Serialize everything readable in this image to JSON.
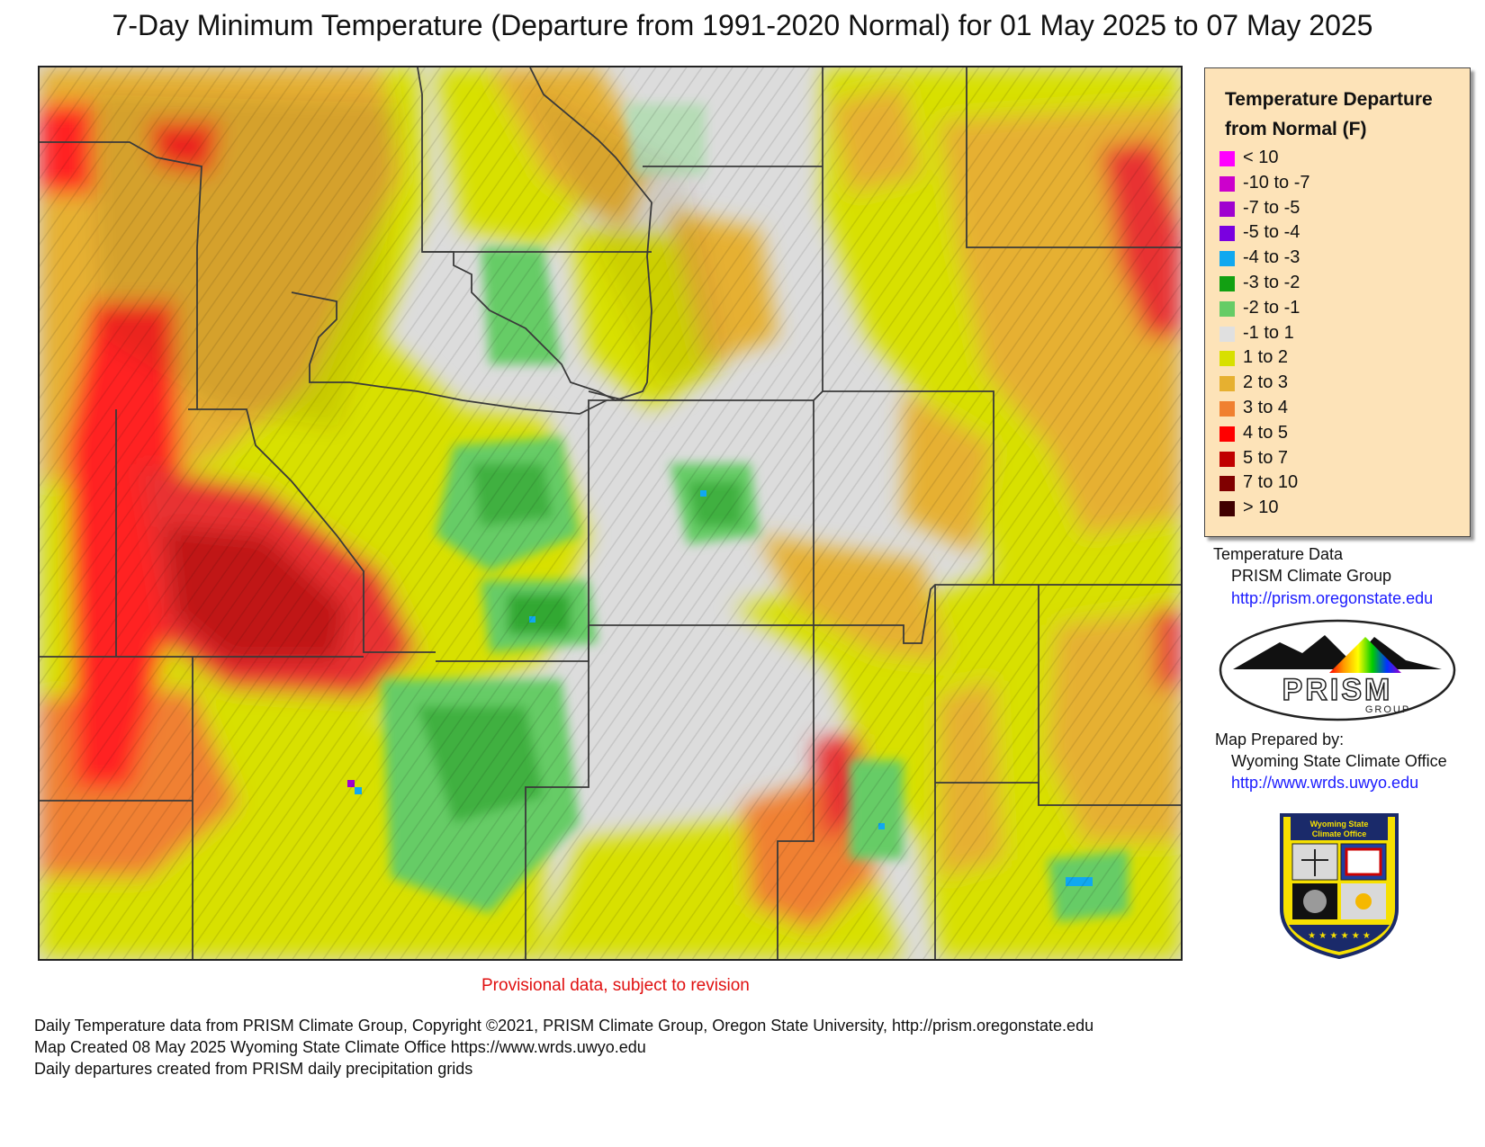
{
  "title": "7-Day Minimum Temperature (Departure from 1991-2020 Normal) for 01 May 2025 to 07 May 2025",
  "legend": {
    "title_line1": "Temperature Departure",
    "title_line2": "from Normal (F)",
    "items": [
      {
        "label": "< 10",
        "color": "#ff00ff"
      },
      {
        "label": "-10 to -7",
        "color": "#cc00cc"
      },
      {
        "label": "-7 to -5",
        "color": "#a000d0"
      },
      {
        "label": "-5 to -4",
        "color": "#7a00e0"
      },
      {
        "label": "-4 to -3",
        "color": "#10a8f0"
      },
      {
        "label": "-3 to -2",
        "color": "#12a012"
      },
      {
        "label": "-2 to -1",
        "color": "#66cc66"
      },
      {
        "label": "-1 to 1",
        "color": "#e0e0e0"
      },
      {
        "label": "1 to 2",
        "color": "#d8e000"
      },
      {
        "label": "2 to 3",
        "color": "#e6b030"
      },
      {
        "label": "3 to 4",
        "color": "#f08030"
      },
      {
        "label": "4 to 5",
        "color": "#ff0000"
      },
      {
        "label": "5 to 7",
        "color": "#c00000"
      },
      {
        "label": "7 to 10",
        "color": "#800000"
      },
      {
        "label": "> 10",
        "color": "#400000"
      }
    ]
  },
  "credits": {
    "data_heading": "Temperature Data",
    "data_source": "PRISM Climate Group",
    "data_url": "http://prism.oregonstate.edu",
    "prepared_heading": "Map Prepared by:",
    "prepared_by": "Wyoming State Climate Office",
    "prepared_url": "http://www.wrds.uwyo.edu"
  },
  "logos": {
    "prism_text": "PRISM",
    "prism_subtext": "GROUP",
    "wsco_line1": "Wyoming State",
    "wsco_line2": "Climate Office"
  },
  "provisional_note": "Provisional data, subject to revision",
  "footer": {
    "line1": "Daily Temperature data from PRISM Climate Group, Copyright ©2021, PRISM Climate Group, Oregon State University, http://prism.oregonstate.edu",
    "line2": "Map Created 08 May 2025 Wyoming State Climate Office https://www.wrds.uwyo.edu",
    "line3": "Daily departures created from PRISM daily precipitation grids"
  }
}
